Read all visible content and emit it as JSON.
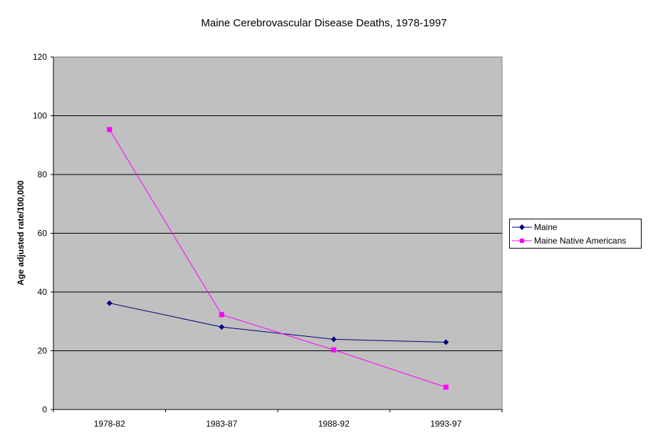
{
  "chart_data": {
    "type": "line",
    "title": "Maine Cerebrovascular Disease Deaths, 1978-1997",
    "xlabel": "",
    "ylabel": "Age adjusted rate/100,000",
    "categories": [
      "1978-82",
      "1983-87",
      "1988-92",
      "1993-97"
    ],
    "ylim": [
      0,
      120
    ],
    "yticks": [
      0,
      20,
      40,
      60,
      80,
      100,
      120
    ],
    "grid": true,
    "legend_position": "right",
    "plot_background": "#c0c0c0",
    "series": [
      {
        "name": "Maine",
        "values": [
          36.2,
          28.1,
          23.9,
          22.9
        ],
        "color": "#000080",
        "marker": "diamond"
      },
      {
        "name": "Maine Native Americans",
        "values": [
          95.3,
          32.3,
          20.3,
          7.6
        ],
        "color": "#ff00ff",
        "marker": "square"
      }
    ]
  }
}
